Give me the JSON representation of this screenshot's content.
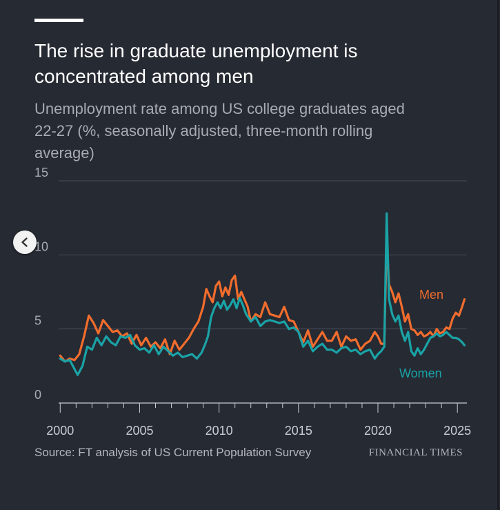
{
  "title": "The rise in graduate unemployment is concentrated among men",
  "subtitle": "Unemployment rate among US college graduates aged 22-27 (%, seasonally adjusted, three-month rolling average)",
  "source": "Source: FT analysis of US Current Population Survey",
  "brand": "FINANCIAL TIMES",
  "colors": {
    "men": "#f26d2d",
    "women": "#1aa3a6",
    "background": "#262a33"
  },
  "chart_data": {
    "type": "line",
    "title": "The rise in graduate unemployment is concentrated among men",
    "xlabel": "",
    "ylabel": "",
    "xlim": [
      1999.9,
      2025.6
    ],
    "ylim": [
      0,
      15
    ],
    "yticks": [
      0,
      5,
      10,
      15
    ],
    "xticks": [
      2000,
      2005,
      2010,
      2015,
      2020,
      2025
    ],
    "xtick_labels": [
      "2000",
      "2005",
      "2010",
      "2015",
      "2020",
      "2025"
    ],
    "ytick_labels": [
      "0",
      "5",
      "10",
      "15"
    ],
    "grid": true,
    "series": [
      {
        "name": "Men",
        "label": "Men",
        "color": "#f26d2d",
        "x": [
          2000.0,
          2000.3,
          2000.6,
          2000.9,
          2001.2,
          2001.5,
          2001.8,
          2002.1,
          2002.4,
          2002.7,
          2003.0,
          2003.3,
          2003.6,
          2003.9,
          2004.2,
          2004.5,
          2004.8,
          2005.1,
          2005.4,
          2005.7,
          2006.0,
          2006.3,
          2006.6,
          2006.9,
          2007.2,
          2007.5,
          2007.8,
          2008.1,
          2008.4,
          2008.7,
          2009.0,
          2009.2,
          2009.4,
          2009.6,
          2009.8,
          2010.0,
          2010.2,
          2010.4,
          2010.6,
          2010.8,
          2011.0,
          2011.2,
          2011.4,
          2011.6,
          2011.8,
          2012.0,
          2012.3,
          2012.6,
          2012.9,
          2013.2,
          2013.5,
          2013.8,
          2014.1,
          2014.4,
          2014.7,
          2015.0,
          2015.3,
          2015.6,
          2015.9,
          2016.2,
          2016.5,
          2016.8,
          2017.1,
          2017.4,
          2017.7,
          2018.0,
          2018.3,
          2018.6,
          2018.9,
          2019.2,
          2019.5,
          2019.8,
          2020.0,
          2020.2,
          2020.4,
          2020.55,
          2020.7,
          2020.9,
          2021.1,
          2021.3,
          2021.5,
          2021.7,
          2021.9,
          2022.1,
          2022.3,
          2022.5,
          2022.7,
          2022.9,
          2023.1,
          2023.3,
          2023.5,
          2023.7,
          2023.9,
          2024.1,
          2024.3,
          2024.5,
          2024.7,
          2024.9,
          2025.1,
          2025.3,
          2025.45
        ],
        "values": [
          3.2,
          2.8,
          3.0,
          2.9,
          3.3,
          4.5,
          5.9,
          5.4,
          4.7,
          5.6,
          5.2,
          4.8,
          4.9,
          4.5,
          4.7,
          4.0,
          4.6,
          3.9,
          4.4,
          3.8,
          4.1,
          3.7,
          4.3,
          3.3,
          4.2,
          3.6,
          4.0,
          4.4,
          5.0,
          5.5,
          6.5,
          7.7,
          7.2,
          6.8,
          7.9,
          8.2,
          7.2,
          7.8,
          7.3,
          8.3,
          8.6,
          7.0,
          7.5,
          7.0,
          6.5,
          5.5,
          6.0,
          5.8,
          6.8,
          6.0,
          5.9,
          5.8,
          6.5,
          5.6,
          5.5,
          4.8,
          4.1,
          4.9,
          3.8,
          4.3,
          4.8,
          4.2,
          4.2,
          4.8,
          3.8,
          4.5,
          4.2,
          4.3,
          3.6,
          4.0,
          4.2,
          4.8,
          4.5,
          4.0,
          4.0,
          11.0,
          8.0,
          7.5,
          6.8,
          7.4,
          6.5,
          5.5,
          6.0,
          5.0,
          4.9,
          4.6,
          4.8,
          4.5,
          4.6,
          4.8,
          4.5,
          5.0,
          4.7,
          4.8,
          5.1,
          5.0,
          5.7,
          6.1,
          5.9,
          6.5,
          7.0
        ]
      },
      {
        "name": "Women",
        "label": "Women",
        "color": "#1aa3a6",
        "x": [
          2000.0,
          2000.3,
          2000.6,
          2000.9,
          2001.1,
          2001.4,
          2001.7,
          2002.0,
          2002.3,
          2002.6,
          2002.9,
          2003.2,
          2003.5,
          2003.8,
          2004.1,
          2004.4,
          2004.7,
          2005.0,
          2005.3,
          2005.6,
          2005.9,
          2006.2,
          2006.5,
          2006.8,
          2007.1,
          2007.4,
          2007.7,
          2008.0,
          2008.3,
          2008.6,
          2008.9,
          2009.1,
          2009.3,
          2009.5,
          2009.7,
          2009.9,
          2010.1,
          2010.3,
          2010.5,
          2010.7,
          2010.9,
          2011.1,
          2011.3,
          2011.5,
          2011.7,
          2012.0,
          2012.3,
          2012.6,
          2012.9,
          2013.2,
          2013.5,
          2013.8,
          2014.1,
          2014.4,
          2014.7,
          2015.0,
          2015.3,
          2015.6,
          2015.9,
          2016.2,
          2016.5,
          2016.8,
          2017.1,
          2017.4,
          2017.7,
          2018.0,
          2018.3,
          2018.6,
          2018.9,
          2019.2,
          2019.5,
          2019.8,
          2020.0,
          2020.2,
          2020.4,
          2020.55,
          2020.7,
          2020.9,
          2021.1,
          2021.3,
          2021.5,
          2021.7,
          2021.9,
          2022.1,
          2022.3,
          2022.5,
          2022.7,
          2022.9,
          2023.1,
          2023.3,
          2023.5,
          2023.7,
          2023.9,
          2024.1,
          2024.3,
          2024.5,
          2024.7,
          2024.9,
          2025.1,
          2025.3,
          2025.45
        ],
        "values": [
          3.0,
          2.8,
          2.9,
          2.3,
          1.9,
          2.5,
          3.8,
          3.6,
          4.4,
          3.9,
          4.5,
          4.1,
          3.9,
          4.5,
          4.4,
          4.6,
          3.9,
          3.6,
          3.7,
          3.4,
          3.9,
          3.3,
          3.8,
          3.5,
          3.2,
          3.4,
          3.1,
          3.2,
          3.3,
          3.0,
          3.4,
          3.9,
          4.5,
          5.8,
          6.4,
          6.8,
          6.4,
          6.9,
          6.3,
          6.6,
          7.0,
          6.4,
          7.1,
          6.6,
          6.0,
          5.5,
          5.8,
          5.2,
          5.5,
          5.6,
          5.5,
          5.4,
          5.5,
          5.0,
          5.1,
          4.8,
          3.8,
          4.2,
          3.5,
          3.8,
          4.0,
          3.6,
          3.6,
          3.4,
          3.7,
          3.8,
          3.5,
          3.6,
          3.3,
          3.5,
          3.6,
          3.0,
          3.3,
          3.5,
          3.8,
          12.8,
          7.0,
          6.0,
          5.5,
          5.9,
          4.8,
          4.2,
          4.8,
          3.5,
          3.2,
          3.7,
          3.3,
          3.6,
          4.0,
          4.4,
          4.5,
          4.7,
          4.5,
          4.6,
          4.8,
          4.6,
          4.4,
          4.4,
          4.3,
          4.1,
          3.9
        ]
      }
    ],
    "annotations": [
      {
        "text": "Men",
        "series": "Men"
      },
      {
        "text": "Women",
        "series": "Women"
      }
    ]
  },
  "nav": {
    "prev_label": "‹",
    "prev_icon": "chevron-left-icon"
  }
}
